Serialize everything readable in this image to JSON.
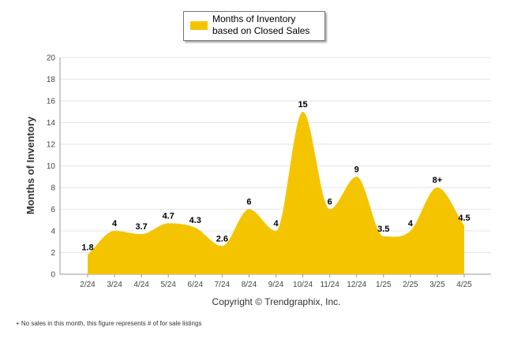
{
  "legend": {
    "label": "Months of Inventory based on Closed Sales",
    "color": "#F5C400"
  },
  "footnote": "+  No sales in this month, this figure represents # of for sale listings",
  "chart_data": {
    "type": "area",
    "categories": [
      "2/24",
      "3/24",
      "4/24",
      "5/24",
      "6/24",
      "7/24",
      "8/24",
      "9/24",
      "10/24",
      "11/24",
      "12/24",
      "1/25",
      "2/25",
      "3/25",
      "4/25"
    ],
    "series": [
      {
        "name": "Months of Inventory based on Closed Sales",
        "values": [
          1.8,
          4,
          3.7,
          4.7,
          4.3,
          2.6,
          6,
          4,
          15,
          6,
          9,
          3.5,
          4,
          8,
          4.5
        ],
        "labels": [
          "1.8",
          "4",
          "3.7",
          "4.7",
          "4.3",
          "2.6",
          "6",
          "4",
          "15",
          "6",
          "9",
          "3.5",
          "4",
          "8+",
          "4.5"
        ],
        "color": "#F5C400"
      }
    ],
    "ylabel": "Months of Inventory",
    "xlabel": "Copyright © Trendgraphix, Inc.",
    "ylim": [
      0,
      20
    ],
    "yticks": [
      0,
      2,
      4,
      6,
      8,
      10,
      12,
      14,
      16,
      18,
      20
    ],
    "grid": true,
    "legend": "top-center"
  }
}
